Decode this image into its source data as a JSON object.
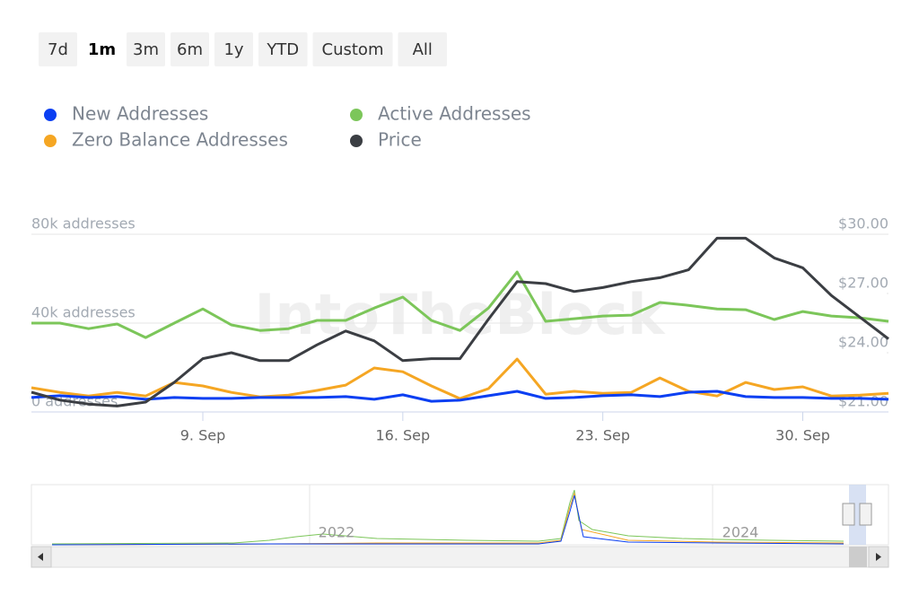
{
  "range_selector": {
    "buttons": [
      "7d",
      "1m",
      "3m",
      "6m",
      "1y",
      "YTD",
      "Custom",
      "All"
    ],
    "selected": 1
  },
  "watermark": "IntoTheBlock",
  "chart_data": {
    "type": "line",
    "x": [
      "3. Sep",
      "4. Sep",
      "5. Sep",
      "6. Sep",
      "7. Sep",
      "8. Sep",
      "9. Sep",
      "10. Sep",
      "11. Sep",
      "12. Sep",
      "13. Sep",
      "14. Sep",
      "15. Sep",
      "16. Sep",
      "17. Sep",
      "18. Sep",
      "19. Sep",
      "20. Sep",
      "21. Sep",
      "22. Sep",
      "23. Sep",
      "24. Sep",
      "25. Sep",
      "26. Sep",
      "27. Sep",
      "28. Sep",
      "29. Sep",
      "30. Sep",
      "1. Oct",
      "2. Oct",
      "3. Oct"
    ],
    "xticks": [
      "9. Sep",
      "16. Sep",
      "23. Sep",
      "30. Sep"
    ],
    "ylim": [
      0,
      80000
    ],
    "yticks": [
      {
        "value": 0,
        "label": "0 addresses"
      },
      {
        "value": 40000,
        "label": "40k addresses"
      },
      {
        "value": 80000,
        "label": "80k addresses"
      }
    ],
    "y2lim": [
      21,
      30
    ],
    "y2ticks": [
      {
        "value": 21,
        "label": "$21.00"
      },
      {
        "value": 24,
        "label": "$24.00"
      },
      {
        "value": 27,
        "label": "$27.00"
      },
      {
        "value": 30,
        "label": "$30.00"
      }
    ],
    "grid": true,
    "series": [
      {
        "name": "New Addresses",
        "color": "#0b3ff2",
        "values": [
          6500,
          7300,
          6500,
          6900,
          5700,
          6500,
          6100,
          6100,
          6500,
          6500,
          6500,
          6900,
          5700,
          7700,
          4800,
          5300,
          7300,
          9300,
          6100,
          6500,
          7300,
          7700,
          6900,
          8900,
          9300,
          6900,
          6500,
          6500,
          6100,
          6100,
          5700
        ]
      },
      {
        "name": "Zero Balance Addresses",
        "color": "#f5a623",
        "values": [
          10900,
          8800,
          7200,
          8800,
          7200,
          13300,
          11700,
          8800,
          6800,
          7600,
          9700,
          12100,
          19800,
          18100,
          11700,
          6000,
          10500,
          23800,
          8000,
          9300,
          8400,
          8800,
          15300,
          9300,
          7200,
          13300,
          10100,
          11300,
          7200,
          7600,
          8400
        ]
      },
      {
        "name": "Active Addresses",
        "color": "#7cc65a",
        "values": [
          40000,
          40000,
          37500,
          39600,
          33500,
          40000,
          46400,
          39200,
          36700,
          37500,
          41200,
          41200,
          46800,
          51700,
          41200,
          36700,
          46800,
          63000,
          40800,
          42000,
          43200,
          43600,
          49300,
          48000,
          46400,
          46000,
          41600,
          45200,
          43200,
          42400,
          40800
        ]
      },
      {
        "name": "Price",
        "color": "#3b3e43",
        "axis": "y2",
        "values": [
          22.0,
          21.6,
          21.4,
          21.3,
          21.5,
          22.5,
          23.7,
          24.0,
          23.6,
          23.6,
          24.4,
          25.1,
          24.6,
          23.6,
          23.7,
          23.7,
          25.7,
          27.6,
          27.5,
          27.1,
          27.3,
          27.6,
          27.8,
          28.2,
          29.8,
          29.8,
          28.8,
          28.3,
          26.9,
          25.8,
          24.7
        ]
      }
    ]
  },
  "navigator": {
    "labels": [
      "2022",
      "2024"
    ]
  }
}
